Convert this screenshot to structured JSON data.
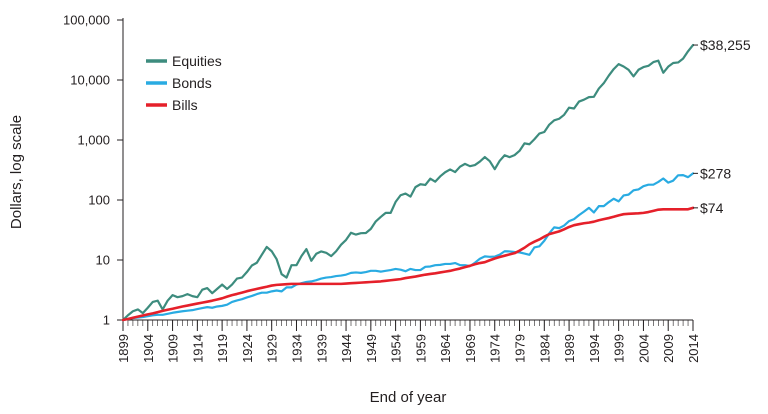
{
  "chart_data": {
    "type": "line",
    "title": "",
    "xlabel": "End of year",
    "ylabel": "Dollars, log scale",
    "y_scale": "log",
    "ylim": [
      1,
      100000
    ],
    "xlim": [
      1899,
      2014
    ],
    "y_ticks": [
      1,
      10,
      100,
      1000,
      10000,
      100000
    ],
    "y_tick_labels": [
      "1",
      "10",
      "100",
      "1,000",
      "10,000",
      "100,000"
    ],
    "x_ticks": [
      1899,
      1904,
      1909,
      1914,
      1919,
      1924,
      1929,
      1934,
      1939,
      1944,
      1949,
      1954,
      1959,
      1964,
      1969,
      1974,
      1979,
      1984,
      1989,
      1994,
      1999,
      2004,
      2009,
      2014
    ],
    "x_tick_labels": [
      "1899",
      "1904",
      "1909",
      "1914",
      "1919",
      "1924",
      "1929",
      "1934",
      "1939",
      "1944",
      "1949",
      "1954",
      "1959",
      "1964",
      "1969",
      "1974",
      "1979",
      "1984",
      "1989",
      "1994",
      "1999",
      "2004",
      "2009",
      "2014"
    ],
    "legend_position": "top-left",
    "grid": false,
    "series": [
      {
        "name": "Equities",
        "color": "#3d8c7e",
        "end_label": "$38,255",
        "x": [
          1899,
          1900,
          1901,
          1902,
          1903,
          1904,
          1905,
          1906,
          1907,
          1908,
          1909,
          1910,
          1911,
          1912,
          1913,
          1914,
          1915,
          1916,
          1917,
          1918,
          1919,
          1920,
          1921,
          1922,
          1923,
          1924,
          1925,
          1926,
          1927,
          1928,
          1929,
          1930,
          1931,
          1932,
          1933,
          1934,
          1935,
          1936,
          1937,
          1938,
          1939,
          1940,
          1941,
          1942,
          1943,
          1944,
          1945,
          1946,
          1947,
          1948,
          1949,
          1950,
          1951,
          1952,
          1953,
          1954,
          1955,
          1956,
          1957,
          1958,
          1959,
          1960,
          1961,
          1962,
          1963,
          1964,
          1965,
          1966,
          1967,
          1968,
          1969,
          1970,
          1971,
          1972,
          1973,
          1974,
          1975,
          1976,
          1977,
          1978,
          1979,
          1980,
          1981,
          1982,
          1983,
          1984,
          1985,
          1986,
          1987,
          1988,
          1989,
          1990,
          1991,
          1992,
          1993,
          1994,
          1995,
          1996,
          1997,
          1998,
          1999,
          2000,
          2001,
          2002,
          2003,
          2004,
          2005,
          2006,
          2007,
          2008,
          2009,
          2010,
          2011,
          2012,
          2013,
          2014
        ],
        "y": [
          1,
          1.2,
          1.4,
          1.5,
          1.3,
          1.6,
          2,
          2.1,
          1.5,
          2.1,
          2.6,
          2.4,
          2.5,
          2.7,
          2.5,
          2.4,
          3.2,
          3.4,
          2.8,
          3.3,
          3.9,
          3.3,
          3.9,
          4.9,
          5.1,
          6.3,
          8.1,
          9,
          12.2,
          16.5,
          14,
          10.3,
          5.8,
          5.1,
          8.2,
          8.2,
          11.6,
          15.2,
          9.7,
          12.7,
          13.9,
          13.2,
          11.6,
          14,
          18,
          21.6,
          28.4,
          26.5,
          28,
          28.2,
          33,
          44,
          52.2,
          61,
          61,
          93,
          120,
          128,
          114,
          164,
          183,
          178,
          227,
          202,
          248,
          290,
          323,
          292,
          359,
          400,
          366,
          382,
          437,
          520,
          444,
          326,
          450,
          557,
          518,
          560,
          660,
          878,
          850,
          1030,
          1280,
          1360,
          1800,
          2130,
          2260,
          2630,
          3460,
          3350,
          4370,
          4700,
          5180,
          5250,
          7200,
          8850,
          11800,
          15200,
          18400,
          16800,
          14800,
          11500,
          14800,
          16400,
          17200,
          19900,
          21000,
          13200,
          16700,
          19200,
          19600,
          22700,
          30100,
          38255
        ]
      },
      {
        "name": "Bonds",
        "color": "#29abe2",
        "end_label": "$278",
        "x": [
          1899,
          1900,
          1901,
          1902,
          1903,
          1904,
          1905,
          1906,
          1907,
          1908,
          1909,
          1910,
          1911,
          1912,
          1913,
          1914,
          1915,
          1916,
          1917,
          1918,
          1919,
          1920,
          1921,
          1922,
          1923,
          1924,
          1925,
          1926,
          1927,
          1928,
          1929,
          1930,
          1931,
          1932,
          1933,
          1934,
          1935,
          1936,
          1937,
          1938,
          1939,
          1940,
          1941,
          1942,
          1943,
          1944,
          1945,
          1946,
          1947,
          1948,
          1949,
          1950,
          1951,
          1952,
          1953,
          1954,
          1955,
          1956,
          1957,
          1958,
          1959,
          1960,
          1961,
          1962,
          1963,
          1964,
          1965,
          1966,
          1967,
          1968,
          1969,
          1970,
          1971,
          1972,
          1973,
          1974,
          1975,
          1976,
          1977,
          1978,
          1979,
          1980,
          1981,
          1982,
          1983,
          1984,
          1985,
          1986,
          1987,
          1988,
          1989,
          1990,
          1991,
          1992,
          1993,
          1994,
          1995,
          1996,
          1997,
          1998,
          1999,
          2000,
          2001,
          2002,
          2003,
          2004,
          2005,
          2006,
          2007,
          2008,
          2009,
          2010,
          2011,
          2012,
          2013,
          2014
        ],
        "y": [
          1,
          1.04,
          1.08,
          1.1,
          1.12,
          1.16,
          1.2,
          1.22,
          1.22,
          1.27,
          1.32,
          1.36,
          1.4,
          1.43,
          1.46,
          1.52,
          1.58,
          1.64,
          1.6,
          1.68,
          1.72,
          1.8,
          2,
          2.12,
          2.22,
          2.38,
          2.52,
          2.7,
          2.85,
          2.85,
          3,
          3.1,
          3,
          3.5,
          3.5,
          3.9,
          4.1,
          4.3,
          4.4,
          4.6,
          4.9,
          5.1,
          5.2,
          5.4,
          5.5,
          5.7,
          6.1,
          6.2,
          6.1,
          6.3,
          6.6,
          6.6,
          6.4,
          6.6,
          6.8,
          7.1,
          6.9,
          6.5,
          7.1,
          6.8,
          6.8,
          7.7,
          7.8,
          8.2,
          8.3,
          8.6,
          8.6,
          8.9,
          8.2,
          8.2,
          7.9,
          9,
          10.5,
          11.5,
          11.3,
          11.4,
          12.3,
          14,
          13.9,
          13.6,
          13.4,
          12.8,
          12.2,
          16.2,
          16.9,
          20.9,
          27.8,
          35,
          34,
          37.5,
          44.5,
          48,
          56,
          64,
          74,
          62,
          79,
          79,
          92,
          105,
          95,
          119,
          123,
          145,
          150,
          170,
          180,
          180,
          200,
          228,
          195,
          210,
          258,
          260,
          240,
          278
        ]
      },
      {
        "name": "Bills",
        "color": "#e5202a",
        "end_label": "$74",
        "x": [
          1899,
          1900,
          1901,
          1902,
          1903,
          1904,
          1905,
          1906,
          1907,
          1908,
          1909,
          1910,
          1911,
          1912,
          1913,
          1914,
          1915,
          1916,
          1917,
          1918,
          1919,
          1920,
          1921,
          1922,
          1923,
          1924,
          1925,
          1926,
          1927,
          1928,
          1929,
          1930,
          1931,
          1932,
          1933,
          1934,
          1935,
          1936,
          1937,
          1938,
          1939,
          1940,
          1941,
          1942,
          1943,
          1944,
          1945,
          1946,
          1947,
          1948,
          1949,
          1950,
          1951,
          1952,
          1953,
          1954,
          1955,
          1956,
          1957,
          1958,
          1959,
          1960,
          1961,
          1962,
          1963,
          1964,
          1965,
          1966,
          1967,
          1968,
          1969,
          1970,
          1971,
          1972,
          1973,
          1974,
          1975,
          1976,
          1977,
          1978,
          1979,
          1980,
          1981,
          1982,
          1983,
          1984,
          1985,
          1986,
          1987,
          1988,
          1989,
          1990,
          1991,
          1992,
          1993,
          1994,
          1995,
          1996,
          1997,
          1998,
          1999,
          2000,
          2001,
          2002,
          2003,
          2004,
          2005,
          2006,
          2007,
          2008,
          2009,
          2010,
          2011,
          2012,
          2013,
          2014
        ],
        "y": [
          1,
          1.04,
          1.09,
          1.14,
          1.19,
          1.24,
          1.29,
          1.35,
          1.42,
          1.48,
          1.54,
          1.61,
          1.68,
          1.74,
          1.81,
          1.88,
          1.95,
          2.02,
          2.1,
          2.2,
          2.3,
          2.45,
          2.6,
          2.72,
          2.86,
          3.02,
          3.16,
          3.3,
          3.44,
          3.58,
          3.75,
          3.85,
          3.9,
          3.95,
          4,
          4,
          4,
          4,
          4,
          4,
          4,
          4,
          4,
          4,
          4,
          4.05,
          4.1,
          4.15,
          4.2,
          4.25,
          4.3,
          4.35,
          4.4,
          4.5,
          4.6,
          4.7,
          4.8,
          5,
          5.15,
          5.3,
          5.5,
          5.7,
          5.85,
          6,
          6.2,
          6.4,
          6.6,
          6.9,
          7.2,
          7.6,
          8,
          8.5,
          8.9,
          9.2,
          9.9,
          10.6,
          11.2,
          11.8,
          12.4,
          13,
          14.3,
          16,
          18.3,
          20.2,
          22,
          24.5,
          27,
          28.5,
          30,
          32.5,
          35.5,
          38,
          39.5,
          41,
          42,
          43.5,
          46,
          48,
          50,
          52.5,
          55.5,
          58,
          58.8,
          59.5,
          60,
          61,
          63,
          66,
          69,
          70,
          70,
          70,
          70,
          70,
          70,
          74
        ]
      }
    ]
  }
}
